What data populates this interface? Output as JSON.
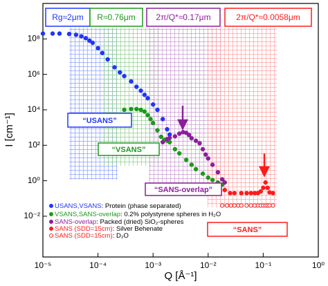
{
  "chart_data": {
    "type": "scatter",
    "x_log": true,
    "y_log": true,
    "x_label": "Q [Å⁻¹]",
    "y_label": "I [cm⁻¹]",
    "xlim": [
      1e-05,
      1
    ],
    "ylim": [
      5e-05,
      10000000000
    ],
    "xticks": [
      {
        "value": 1e-05,
        "label": "10⁻⁵"
      },
      {
        "value": 0.0001,
        "label": "10⁻⁴"
      },
      {
        "value": 0.001,
        "label": "10⁻³"
      },
      {
        "value": 0.01,
        "label": "10⁻²"
      },
      {
        "value": 0.1,
        "label": "10⁻¹"
      },
      {
        "value": 1,
        "label": "10⁰"
      }
    ],
    "yticks": [
      {
        "value": 0.01,
        "label": "10⁻²"
      },
      {
        "value": 1,
        "label": "10⁰"
      },
      {
        "value": 100,
        "label": "10²"
      },
      {
        "value": 10000,
        "label": "10⁴"
      },
      {
        "value": 1000000,
        "label": "10⁶"
      },
      {
        "value": 100000000,
        "label": "10⁸"
      }
    ],
    "series": [
      {
        "name": "USANS,VSANS",
        "description": ": Protein (phase separated)",
        "color": "#2035ff",
        "marker": "filled",
        "x": [
          1e-05,
          1.5e-05,
          2e-05,
          3e-05,
          4e-05,
          5e-05,
          6e-05,
          7e-05,
          8e-05,
          0.0001,
          0.00012,
          0.00015,
          0.0002,
          0.00025,
          0.0003,
          0.0004,
          0.0005,
          0.0006,
          0.0007,
          0.0008,
          0.001,
          0.0012,
          0.0015,
          0.0018,
          0.002
        ],
        "values": [
          200000000,
          200000000,
          200000000,
          190000000,
          170000000,
          140000000,
          110000000,
          80000000,
          60000000,
          30000000,
          16000000,
          7000000,
          2500000,
          1300000,
          800000,
          400000,
          200000,
          120000,
          70000,
          45000,
          20000,
          10000,
          3000,
          800,
          400
        ]
      },
      {
        "name": "VSANS,SANS-overlap",
        "description": ": 0.2% polystyrene spheres in H₂O",
        "color": "#1a9a1a",
        "marker": "filled",
        "x": [
          0.0003,
          0.0004,
          0.0005,
          0.0006,
          0.0007,
          0.0008,
          0.0009,
          0.001,
          0.0012,
          0.0014,
          0.0016,
          0.0018,
          0.002,
          0.0025,
          0.003,
          0.004,
          0.005,
          0.006,
          0.008,
          0.01,
          0.012,
          0.015,
          0.018
        ],
        "values": [
          10000,
          11000,
          11000,
          10000,
          8000,
          5000,
          3000,
          1800,
          700,
          300,
          200,
          180,
          150,
          60,
          35,
          15,
          8,
          4.5,
          2.5,
          1.5,
          1.1,
          0.8,
          0.6
        ]
      },
      {
        "name": "SANS-overlap",
        "description": ": Packed (dried) SiO₂-spheres",
        "color": "#8b1f9a",
        "marker": "filled",
        "x": [
          0.0015,
          0.0018,
          0.002,
          0.0025,
          0.003,
          0.0035,
          0.004,
          0.0045,
          0.005,
          0.006,
          0.007,
          0.008,
          0.009,
          0.01,
          0.012,
          0.015,
          0.018,
          0.02
        ],
        "values": [
          150,
          220,
          260,
          320,
          450,
          550,
          500,
          380,
          250,
          180,
          130,
          60,
          30,
          18,
          8,
          3,
          1.2,
          0.8
        ]
      },
      {
        "name": "SANS (SDD=15cm)",
        "description": ": Silver Behenate",
        "color": "#ff1a1a",
        "marker": "filled",
        "x": [
          0.02,
          0.025,
          0.03,
          0.04,
          0.05,
          0.06,
          0.07,
          0.08,
          0.09,
          0.1,
          0.11,
          0.12,
          0.13,
          0.15
        ],
        "values": [
          0.3,
          0.2,
          0.2,
          0.2,
          0.2,
          0.2,
          0.2,
          0.2,
          0.25,
          0.4,
          0.8,
          0.4,
          0.22,
          0.2
        ]
      },
      {
        "name": "SANS (SDD=15cm)",
        "description": ": D₂O",
        "color": "#ff1a1a",
        "marker": "open",
        "x": [
          0.018,
          0.022,
          0.026,
          0.03,
          0.035,
          0.04,
          0.05,
          0.06,
          0.07,
          0.08,
          0.09,
          0.1,
          0.11,
          0.12,
          0.13,
          0.15
        ],
        "values": [
          0.04,
          0.04,
          0.04,
          0.04,
          0.04,
          0.04,
          0.04,
          0.04,
          0.04,
          0.04,
          0.04,
          0.04,
          0.04,
          0.04,
          0.04,
          0.04
        ]
      }
    ],
    "annotations": [
      {
        "text": "Rg≈2μm",
        "color": "#2035ff"
      },
      {
        "text": "R≈0.76μm",
        "color": "#1a9a1a"
      },
      {
        "text": "2π/Q*≈0.17μm",
        "color": "#8b1f9a"
      },
      {
        "text": "2π/Q*≈0.0058μm",
        "color": "#ff1a1a"
      },
      {
        "text": "“USANS”",
        "color": "#2035ff"
      },
      {
        "text": "“VSANS”",
        "color": "#1a9a1a"
      },
      {
        "text": "“SANS-overlap”",
        "color": "#8b1f9a"
      },
      {
        "text": "“SANS”",
        "color": "#ff1a1a"
      }
    ]
  }
}
